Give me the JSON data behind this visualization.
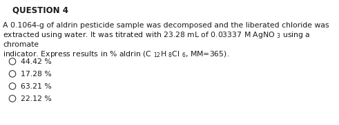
{
  "title": "QUESTION 4",
  "line1": "A 0.1064-g of aldrin pesticide sample was decomposed and the liberated chloride was",
  "line2": "extracted using water. It was titrated with 23.28 mL of 0.03337 M AgNO $_{3}$ using a",
  "line3": "chromate",
  "line4": "indicator. Express results in % aldrin (C $_{12}$H $_{8}$Cl $_{6}$, MM=365).",
  "options": [
    "44.42 %",
    "17.28 %",
    "63.21 %",
    "22.12 %"
  ],
  "bg_color": "#ffffff",
  "text_color": "#1a1a1a",
  "title_fontsize": 8.5,
  "body_fontsize": 7.8,
  "option_fontsize": 7.8
}
